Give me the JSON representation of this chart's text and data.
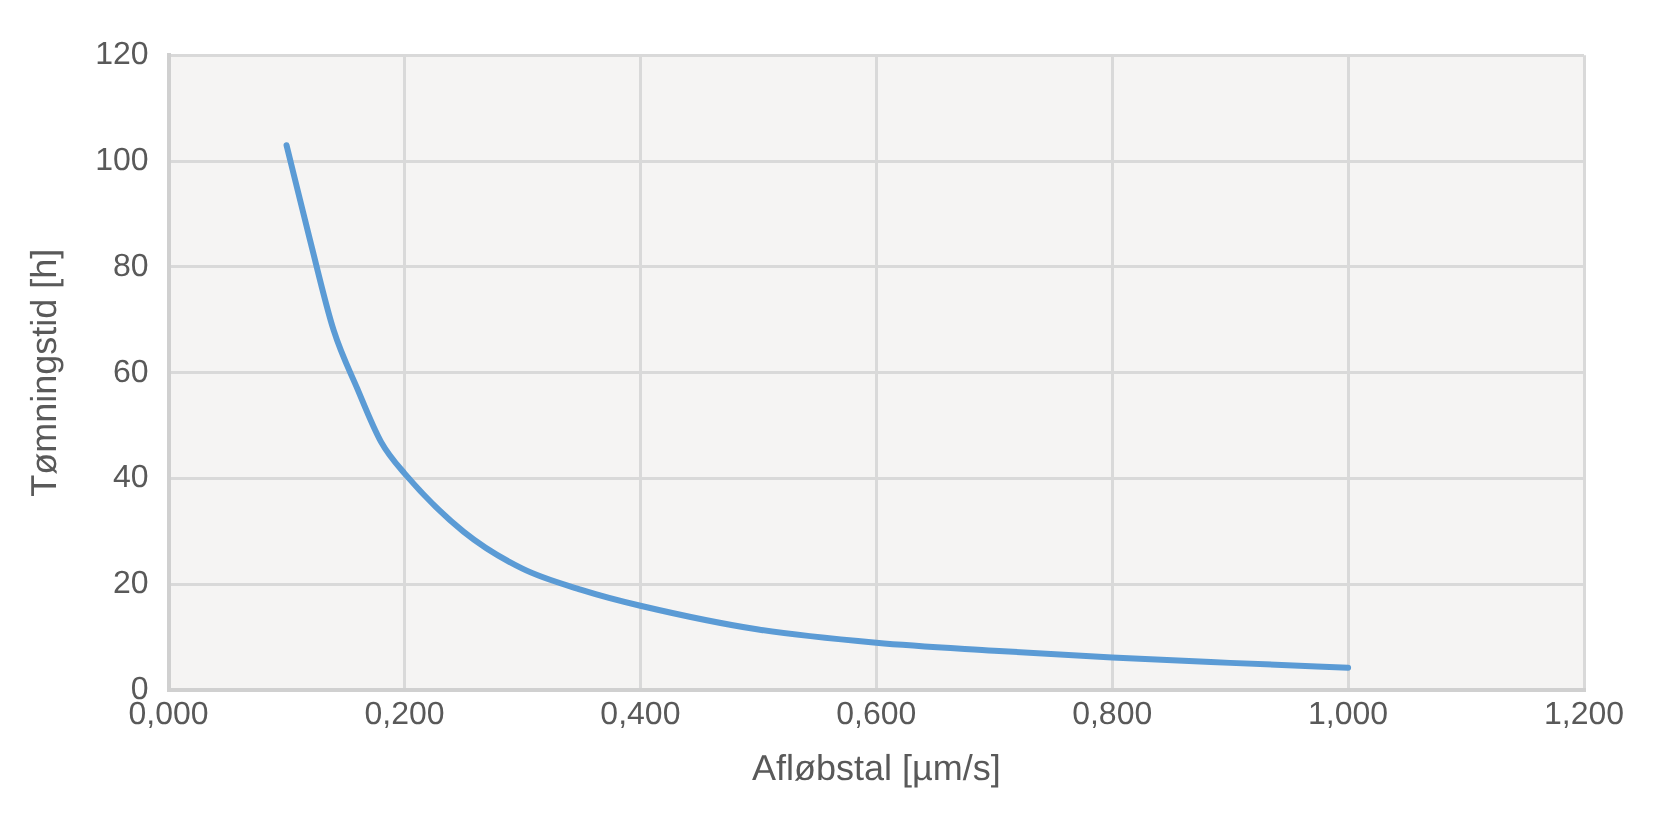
{
  "chart_data": {
    "type": "line",
    "xlabel": "Afløbstal [µm/s]",
    "ylabel": "Tømningstid [h]",
    "x": [
      0.1,
      0.12,
      0.14,
      0.16,
      0.18,
      0.2,
      0.25,
      0.3,
      0.35,
      0.4,
      0.5,
      0.6,
      0.7,
      0.8,
      0.9,
      1.0
    ],
    "series": [
      {
        "color": "#5b9bd5",
        "values": [
          103,
          85,
          68,
          57,
          47,
          41,
          30,
          23,
          19,
          16,
          11.5,
          9,
          7.5,
          6.2,
          5.2,
          4.3
        ]
      }
    ],
    "xlim": [
      0,
      1.2
    ],
    "xticks": [
      {
        "value": 0,
        "label": "0,000"
      },
      {
        "value": 0.2,
        "label": "0,200"
      },
      {
        "value": 0.4,
        "label": "0,400"
      },
      {
        "value": 0.6,
        "label": "0,600"
      },
      {
        "value": 0.8,
        "label": "0,800"
      },
      {
        "value": 1.0,
        "label": "1,000"
      },
      {
        "value": 1.2,
        "label": "1,200"
      }
    ],
    "ylim": [
      0,
      120
    ],
    "yticks": [
      0,
      20,
      40,
      60,
      80,
      100,
      120
    ],
    "grid": true,
    "legend": false,
    "marker": "none",
    "line_style": "solid"
  }
}
